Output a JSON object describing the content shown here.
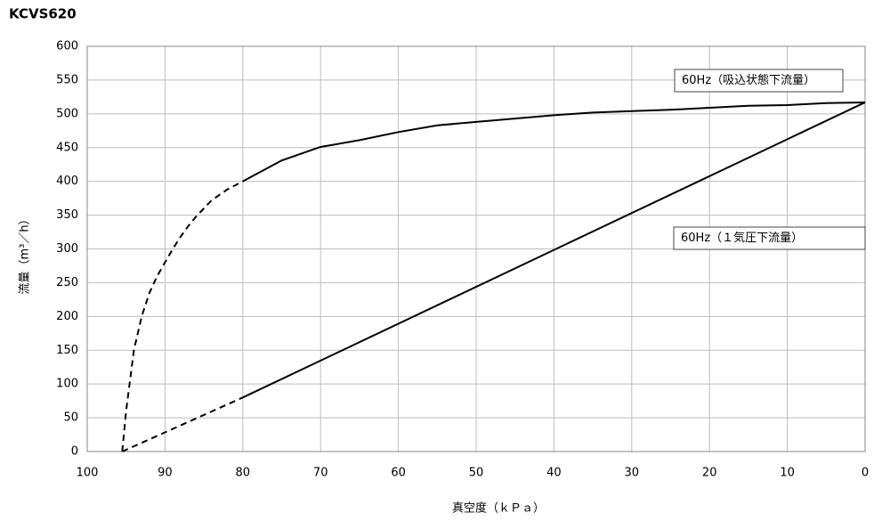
{
  "chart_data": {
    "type": "line",
    "title": "KCVS620",
    "x_label": "真空度（ｋＰａ）",
    "y_label": "流量（m³／h）",
    "xlim": [
      100,
      0
    ],
    "xticks": [
      100,
      90,
      80,
      70,
      60,
      50,
      40,
      30,
      20,
      10,
      0
    ],
    "ylim": [
      0,
      600
    ],
    "yticks": [
      0,
      50,
      100,
      150,
      200,
      250,
      300,
      350,
      400,
      450,
      500,
      550,
      600
    ],
    "grid": true,
    "series": [
      {
        "style": "dashed",
        "color": "#000000",
        "x": [
          95.5,
          95,
          94,
          93,
          92,
          91,
          90,
          89,
          88,
          87,
          86,
          85,
          84,
          82,
          80
        ],
        "values": [
          0,
          60,
          150,
          200,
          235,
          260,
          280,
          300,
          318,
          334,
          348,
          360,
          372,
          388,
          400
        ]
      },
      {
        "style": "solid",
        "color": "#000000",
        "x": [
          80,
          75,
          70,
          65,
          60,
          55,
          50,
          45,
          40,
          35,
          30,
          25,
          20,
          15,
          10,
          5,
          0
        ],
        "values": [
          400,
          431,
          451,
          461,
          473,
          483,
          488,
          493,
          498,
          502,
          504,
          506,
          509,
          512,
          513,
          516,
          517
        ]
      },
      {
        "style": "dashed",
        "color": "#000000",
        "x": [
          95.5,
          80
        ],
        "values": [
          0,
          80
        ]
      },
      {
        "style": "solid",
        "color": "#000000",
        "x": [
          80,
          0
        ],
        "values": [
          80,
          517
        ]
      }
    ],
    "annotations": [
      {
        "text": "60Hz（吸込状態下流量）"
      },
      {
        "text": "60Hz（１気圧下流量）"
      }
    ]
  }
}
